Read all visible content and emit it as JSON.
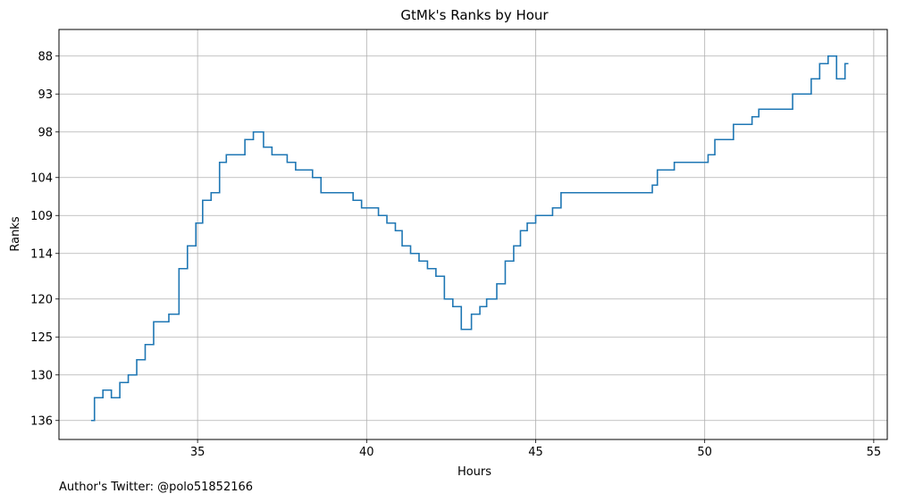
{
  "chart_data": {
    "type": "line",
    "title": "GtMk's Ranks by Hour",
    "xlabel": "Hours",
    "ylabel": "Ranks",
    "xlim": [
      30.9,
      55.4
    ],
    "ylim": [
      138.5,
      84.5
    ],
    "y_inverted": true,
    "step": "post",
    "grid": true,
    "x_ticks": [
      35,
      40,
      45,
      50,
      55
    ],
    "y_ticks": [
      88,
      93,
      98,
      104,
      109,
      114,
      120,
      125,
      130,
      136
    ],
    "color": "#1f77b4",
    "series": [
      {
        "x": [
          31.85,
          31.95,
          32.2,
          32.45,
          32.7,
          32.95,
          33.2,
          33.45,
          33.7,
          34.15,
          34.45,
          34.7,
          34.95,
          35.15,
          35.4,
          35.65,
          35.85,
          36.4,
          36.65,
          36.95,
          37.2,
          37.65,
          37.9,
          38.4,
          38.65,
          39.6,
          39.85,
          40.35,
          40.6,
          40.85,
          41.05,
          41.3,
          41.55,
          41.8,
          42.05,
          42.3,
          42.55,
          42.8,
          43.1,
          43.35,
          43.55,
          43.85,
          44.1,
          44.35,
          44.55,
          44.75,
          45.0,
          45.5,
          45.75,
          45.95,
          48.45,
          48.6,
          49.1,
          50.1,
          50.3,
          50.85,
          51.4,
          51.6,
          52.6,
          53.15,
          53.4,
          53.65,
          53.9,
          54.15,
          54.25
        ],
        "y": [
          136,
          133,
          132,
          133,
          131,
          130,
          128,
          126,
          123,
          122,
          116,
          113,
          110,
          107,
          106,
          102,
          101,
          99,
          98,
          100,
          101,
          102,
          103,
          104,
          106,
          107,
          108,
          109,
          110,
          111,
          113,
          114,
          115,
          116,
          117,
          120,
          121,
          124,
          122,
          121,
          120,
          118,
          115,
          113,
          111,
          110,
          109,
          108,
          106,
          106,
          105,
          103,
          102,
          101,
          99,
          97,
          96,
          95,
          93,
          91,
          89,
          88,
          91,
          89,
          89
        ]
      }
    ]
  },
  "footnote": "Author's Twitter: @polo51852166"
}
